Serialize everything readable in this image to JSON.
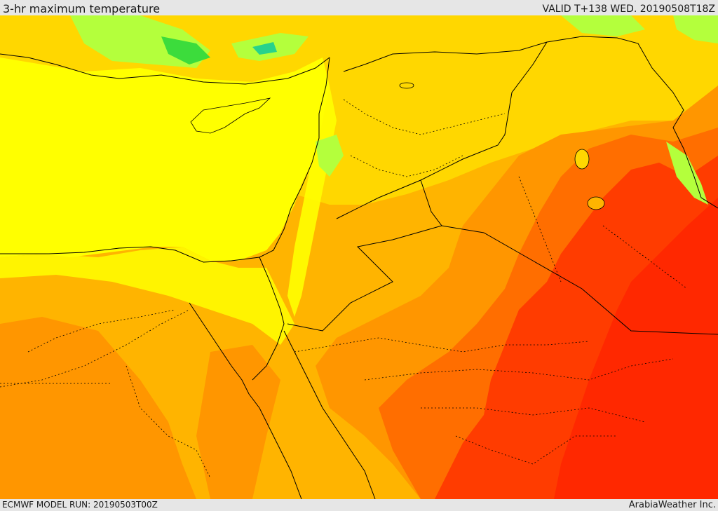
{
  "header": {
    "title": "3-hr maximum temperature",
    "valid": "VALID T+138 WED. 20190508T18Z"
  },
  "footer": {
    "model_run": "ECMWF MODEL RUN: 20190503T00Z",
    "credit": "ArabiaWeather Inc."
  },
  "colors": {
    "sea_yellow": "#ffff00",
    "light_yellow_orange": "#ffd700",
    "orange_yellow": "#ffb400",
    "orange": "#ff9600",
    "dark_orange": "#ff6e00",
    "red_orange": "#ff3c00",
    "red": "#ff2800",
    "green_light": "#b4ff3c",
    "green": "#3cdc3c",
    "teal": "#28d28c",
    "border_color": "#000000"
  }
}
